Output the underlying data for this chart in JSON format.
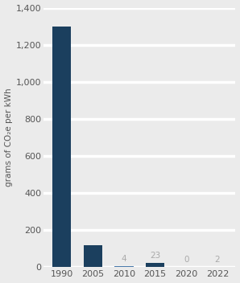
{
  "categories": [
    "1990",
    "2005",
    "2010",
    "2015",
    "2020",
    "2022"
  ],
  "values": [
    1300,
    120,
    4,
    23,
    0,
    2
  ],
  "bar_colors": [
    "#1b3f5e",
    "#1b3f5e",
    "#4a7aab",
    "#1b3f5e",
    "#b8c4ce",
    "#b8c4ce"
  ],
  "value_labels": [
    "",
    "",
    "4",
    "23",
    "0",
    "2"
  ],
  "value_label_colors": [
    "#aaaaaa",
    "#aaaaaa",
    "#aaaaaa",
    "#aaaaaa",
    "#aaaaaa",
    "#aaaaaa"
  ],
  "ylabel": "grams of CO₂e per kWh",
  "ylim": [
    0,
    1400
  ],
  "yticks": [
    0,
    200,
    400,
    600,
    800,
    1000,
    1200,
    1400
  ],
  "background_color": "#ebebeb",
  "plot_bg_color": "#ebebeb",
  "bar_width": 0.6,
  "label_fontsize": 7.5,
  "tick_fontsize": 8,
  "ylabel_fontsize": 7.5,
  "grid_color": "#ffffff",
  "grid_linewidth": 2.5
}
